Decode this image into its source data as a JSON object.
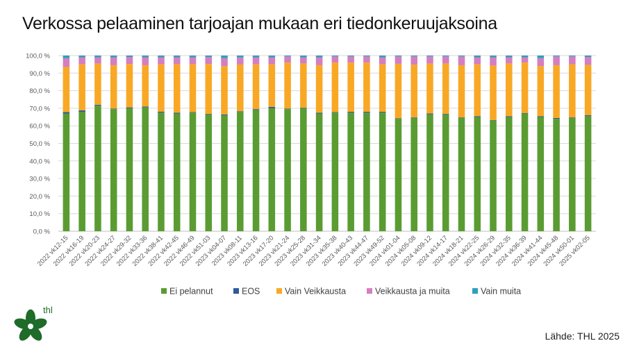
{
  "title": "Verkossa pelaaminen tarjoajan mukaan eri tiedonkeruujaksoina",
  "source": "Lähde: THL 2025",
  "logo_text": "thl",
  "colors": {
    "ei_pelannut": "#5a9c32",
    "eos": "#2e5a9e",
    "vain_veikkausta": "#f9a825",
    "veikkausta_ja_muita": "#d37fc0",
    "vain_muita": "#2f9fbf",
    "logo_green": "#1f6b2a"
  },
  "chart_data": {
    "type": "bar",
    "stacked": true,
    "title": "Verkossa pelaaminen tarjoajan mukaan eri tiedonkeruujaksoina",
    "xlabel": "",
    "ylabel": "",
    "ylim": [
      0,
      100
    ],
    "yticks": [
      "0,0 %",
      "10,0 %",
      "20,0 %",
      "30,0 %",
      "40,0 %",
      "50,0 %",
      "60,0 %",
      "70,0 %",
      "80,0 %",
      "90,0 %",
      "100,0 %"
    ],
    "legend_position": "bottom",
    "categories": [
      "2022 vk12-15",
      "2022 vk16-19",
      "2022 vk20-23",
      "2022 vk24-27",
      "2022 vk29-32",
      "2022 vk33-36",
      "2022 vk38-41",
      "2022 vk42-45",
      "2022 vk46-49",
      "2022 vk51-03",
      "2023 vk04-07",
      "2023 vk08-11",
      "2023 vk13-16",
      "2023 vk17-20",
      "2023 vk21-24",
      "2023 vk25-28",
      "2023 vk31-34",
      "2023 vk35-38",
      "2023 vk40-43",
      "2023 vk44-47",
      "2023 vk49-52",
      "2024 vk01-04",
      "2024 vk05-08",
      "2024 vk09-12",
      "2024 vk14-17",
      "2024 vk18-21",
      "2024 vk22-25",
      "2024 vk26-29",
      "2024 vk32-35",
      "2024 vk36-39",
      "2024 vk41-44",
      "2024 vk45-48",
      "2024 vk50-01",
      "2025 vk02-05"
    ],
    "series": [
      {
        "name": "Ei pelannut",
        "color_key": "ei_pelannut",
        "values": [
          67.0,
          68.0,
          71.5,
          69.5,
          70.0,
          70.5,
          67.5,
          67.0,
          67.5,
          66.5,
          66.0,
          68.0,
          69.0,
          70.0,
          69.5,
          70.0,
          67.0,
          67.5,
          67.5,
          67.5,
          67.5,
          64.0,
          64.5,
          66.5,
          66.5,
          64.5,
          65.0,
          63.0,
          65.0,
          67.0,
          65.0,
          64.0,
          64.5,
          65.5
        ]
      },
      {
        "name": "EOS",
        "color_key": "eos",
        "values": [
          0.8,
          0.8,
          0.5,
          0.3,
          0.5,
          0.5,
          0.6,
          0.5,
          0.3,
          0.3,
          0.5,
          0.3,
          0.5,
          0.8,
          0.3,
          0.3,
          0.5,
          0.3,
          0.5,
          0.5,
          0.5,
          0.3,
          0.3,
          0.5,
          0.3,
          0.3,
          0.5,
          0.3,
          0.5,
          0.3,
          0.5,
          0.5,
          0.3,
          0.5
        ]
      },
      {
        "name": "Vain Veikkausta",
        "color_key": "vain_veikkausta",
        "values": [
          25.7,
          26.2,
          23.5,
          24.7,
          24.7,
          23.5,
          26.9,
          27.5,
          27.2,
          28.4,
          27.5,
          26.6,
          25.5,
          24.2,
          26.2,
          25.2,
          27.0,
          28.2,
          28.0,
          28.0,
          27.0,
          31.0,
          30.0,
          28.5,
          28.7,
          29.7,
          29.5,
          31.0,
          30.0,
          28.7,
          28.5,
          30.0,
          30.2,
          28.7
        ]
      },
      {
        "name": "Veikkausta ja muita",
        "color_key": "veikkausta_ja_muita",
        "values": [
          5.0,
          4.0,
          3.5,
          4.5,
          4.0,
          4.5,
          4.0,
          4.0,
          4.0,
          4.0,
          4.5,
          4.0,
          4.0,
          4.0,
          3.5,
          3.5,
          4.5,
          3.5,
          3.5,
          3.5,
          4.0,
          4.2,
          4.7,
          4.0,
          4.0,
          5.0,
          4.0,
          4.7,
          3.5,
          3.0,
          4.5,
          5.0,
          4.5,
          4.5
        ]
      },
      {
        "name": "Vain muita",
        "color_key": "vain_muita",
        "values": [
          1.5,
          1.0,
          1.0,
          1.0,
          0.8,
          1.0,
          1.0,
          1.0,
          1.0,
          0.8,
          1.5,
          1.1,
          1.0,
          1.0,
          0.5,
          1.0,
          1.0,
          0.5,
          0.5,
          0.5,
          1.0,
          0.5,
          0.5,
          0.5,
          0.5,
          0.5,
          1.0,
          1.0,
          1.0,
          1.0,
          1.5,
          0.5,
          0.5,
          0.8
        ]
      }
    ]
  }
}
